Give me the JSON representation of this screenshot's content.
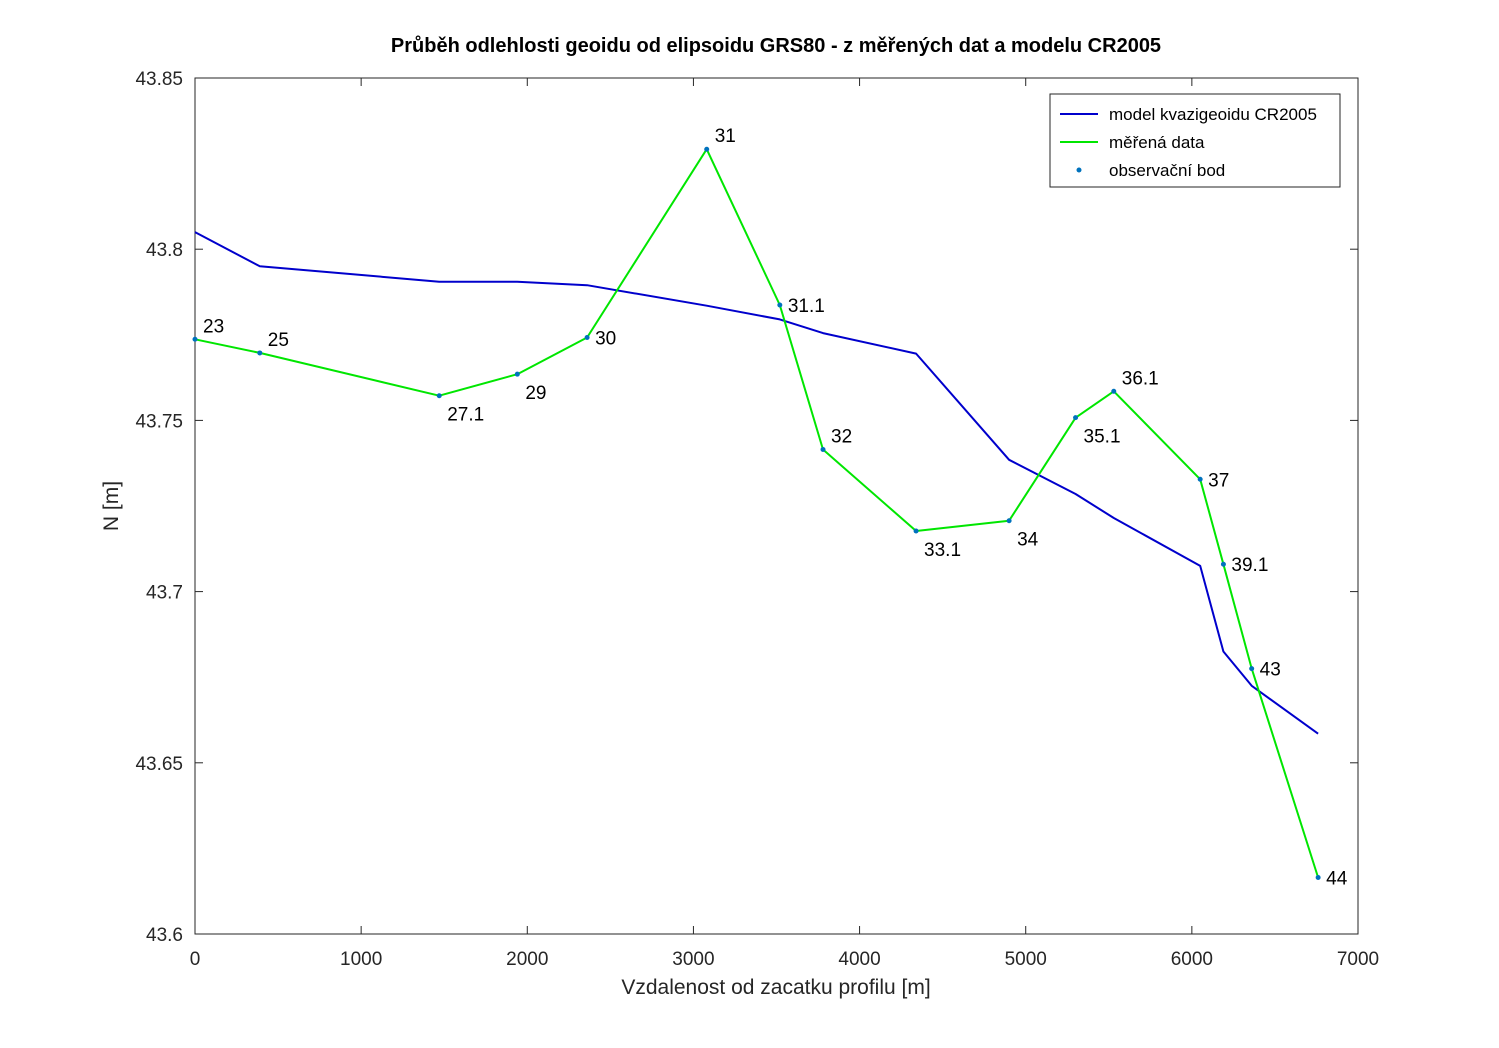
{
  "chart_data": {
    "type": "line",
    "title": "Průběh odlehlosti geoidu od elipsoidu GRS80 - z měřených  dat a modelu CR2005",
    "xlabel": "Vzdalenost od zacatku profilu [m]",
    "ylabel": "N [m]",
    "xlim": [
      0,
      7000
    ],
    "ylim": [
      43.6,
      43.85
    ],
    "xticks": [
      0,
      1000,
      2000,
      3000,
      4000,
      5000,
      6000,
      7000
    ],
    "yticks": [
      43.6,
      43.65,
      43.7,
      43.75,
      43.8,
      43.85
    ],
    "xtick_labels": [
      "0",
      "1000",
      "2000",
      "3000",
      "4000",
      "5000",
      "6000",
      "7000"
    ],
    "ytick_labels": [
      "43.6",
      "43.65",
      "43.7",
      "43.75",
      "43.8",
      "43.85"
    ],
    "grid": false,
    "legend_position": "top-right",
    "series": [
      {
        "name": "model kvazigeoidu CR2005",
        "color": "#0000cc",
        "style": "line",
        "x": [
          0,
          390,
          1470,
          1940,
          2360,
          3080,
          3520,
          3780,
          4340,
          4900,
          5300,
          5530,
          6050,
          6190,
          6360,
          6760
        ],
        "y": [
          43.805,
          43.795,
          43.7905,
          43.7905,
          43.7895,
          43.7835,
          43.7795,
          43.7755,
          43.7695,
          43.7385,
          43.7285,
          43.7215,
          43.7075,
          43.6825,
          43.6725,
          43.6585
        ]
      },
      {
        "name": "měřená data",
        "color": "#00e600",
        "style": "line",
        "x": [
          0,
          390,
          1470,
          1940,
          2360,
          3080,
          3520,
          3780,
          4340,
          4900,
          5300,
          5530,
          6050,
          6190,
          6360,
          6760
        ],
        "y": [
          43.7737,
          43.7697,
          43.7572,
          43.7635,
          43.7742,
          43.8292,
          43.7837,
          43.7415,
          43.7177,
          43.7207,
          43.7508,
          43.7585,
          43.7328,
          43.708,
          43.6775,
          43.6165
        ]
      },
      {
        "name": "observační bod",
        "color": "#0072bd",
        "style": "markers",
        "x": [
          0,
          390,
          1470,
          1940,
          2360,
          3080,
          3520,
          3780,
          4340,
          4900,
          5300,
          5530,
          6050,
          6190,
          6360,
          6760
        ],
        "y": [
          43.7737,
          43.7697,
          43.7572,
          43.7635,
          43.7742,
          43.8292,
          43.7837,
          43.7415,
          43.7177,
          43.7207,
          43.7508,
          43.7585,
          43.7328,
          43.708,
          43.6775,
          43.6165
        ],
        "labels": [
          "23",
          "25",
          "27.1",
          "29",
          "30",
          "31",
          "31.1",
          "32",
          "33.1",
          "34",
          "35.1",
          "36.1",
          "37",
          "39.1",
          "43",
          "44"
        ]
      }
    ],
    "annotation_placement": [
      "above-right",
      "above-right",
      "below-right",
      "below-right",
      "right",
      "above-right",
      "right",
      "above-right",
      "below-right",
      "below-right",
      "below-right",
      "above-right",
      "right",
      "right",
      "right",
      "right"
    ]
  }
}
